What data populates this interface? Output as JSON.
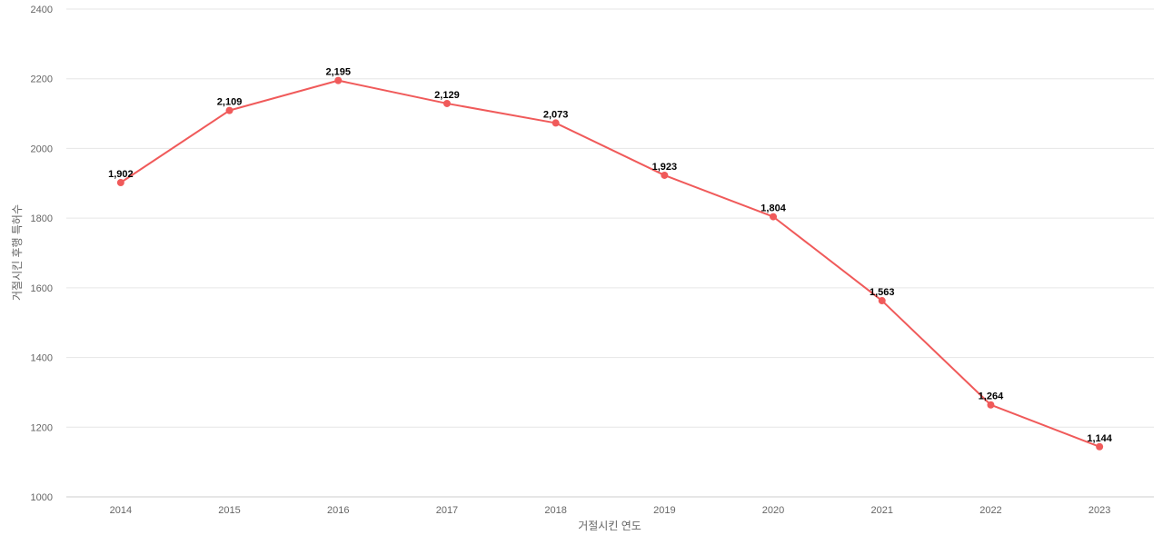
{
  "chart_data": {
    "type": "line",
    "xlabel": "거절시킨 연도",
    "ylabel": "거절시킨 후행 특허수",
    "categories": [
      "2014",
      "2015",
      "2016",
      "2017",
      "2018",
      "2019",
      "2020",
      "2021",
      "2022",
      "2023"
    ],
    "series": [
      {
        "values": [
          1902,
          2109,
          2195,
          2129,
          2073,
          1923,
          1804,
          1563,
          1264,
          1144
        ],
        "data_labels": [
          "1,902",
          "2,109",
          "2,195",
          "2,129",
          "2,073",
          "1,923",
          "1,804",
          "1,563",
          "1,264",
          "1,144"
        ],
        "color": "#f05a5a"
      }
    ],
    "yticks": [
      1000,
      1200,
      1400,
      1600,
      1800,
      2000,
      2200,
      2400
    ],
    "ylim": [
      1000,
      2400
    ],
    "grid": true,
    "legend": "none",
    "colors": {
      "grid": "#e6e6e6",
      "axis": "#cccccc"
    }
  }
}
